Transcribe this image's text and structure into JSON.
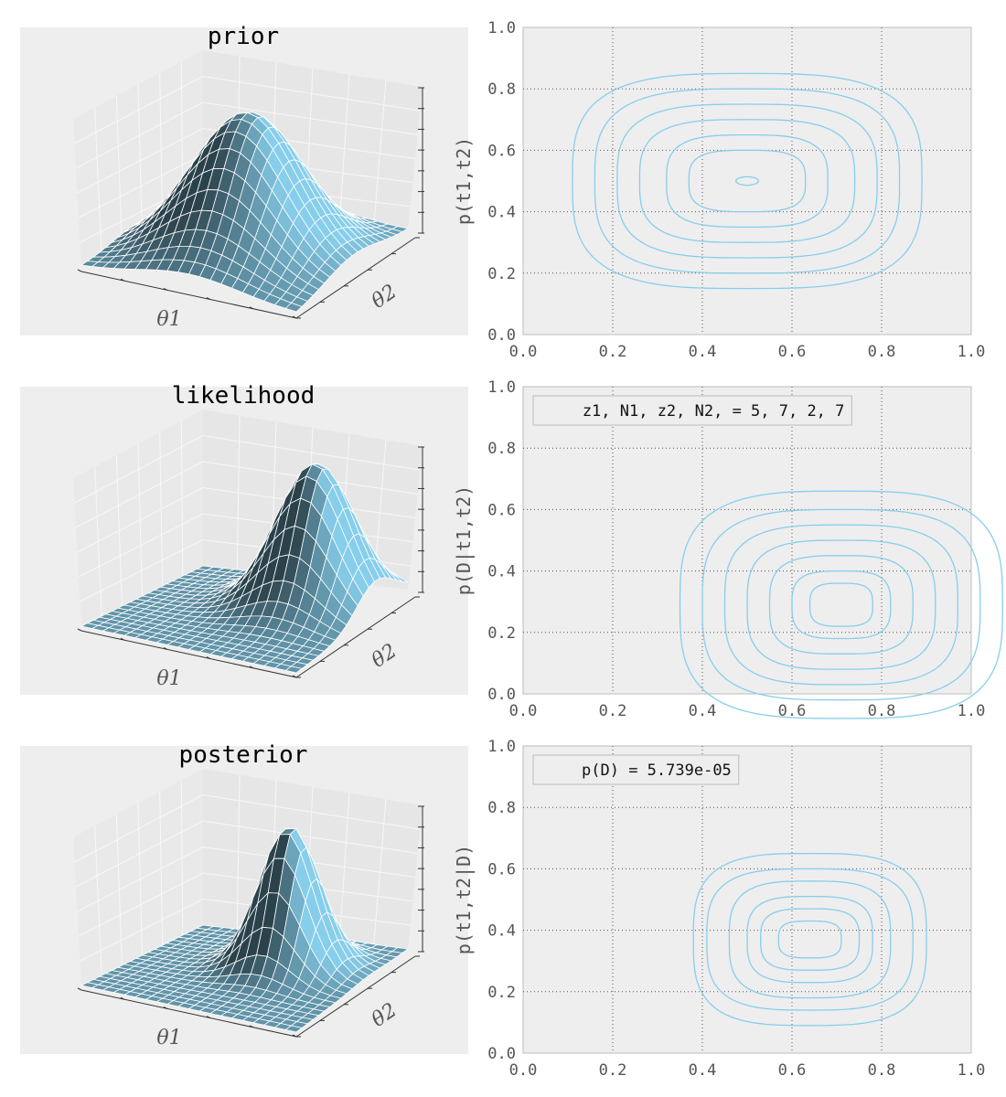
{
  "chart_data": [
    {
      "type": "surface3d",
      "title": "prior",
      "xlabel": "θ1",
      "ylabel": "θ2",
      "zlabel": "p(t1,t2)",
      "surface": {
        "center": [
          0.5,
          0.5
        ],
        "peak": 1.0,
        "width": 0.24,
        "grid": 20
      },
      "color": "#87CEEB"
    },
    {
      "type": "contour",
      "xlim": [
        0.0,
        1.0
      ],
      "ylim": [
        0.0,
        1.0
      ],
      "xticks": [
        "0.0",
        "0.2",
        "0.4",
        "0.6",
        "0.8",
        "1.0"
      ],
      "yticks": [
        "0.0",
        "0.2",
        "0.4",
        "0.6",
        "0.8",
        "1.0"
      ],
      "ylabel": "p(t1,t2)",
      "grid": true,
      "center": [
        0.5,
        0.5
      ],
      "levels": [
        {
          "rx": 0.39,
          "ry": 0.35
        },
        {
          "rx": 0.34,
          "ry": 0.3
        },
        {
          "rx": 0.29,
          "ry": 0.25
        },
        {
          "rx": 0.24,
          "ry": 0.2
        },
        {
          "rx": 0.18,
          "ry": 0.15
        },
        {
          "rx": 0.13,
          "ry": 0.1
        },
        {
          "rx": 0.025,
          "ry": 0.025
        }
      ],
      "legend": "",
      "color": "#87CEEB"
    },
    {
      "type": "surface3d",
      "title": "likelihood",
      "xlabel": "θ1",
      "ylabel": "θ2",
      "zlabel": "p(D|t1,t2)",
      "surface": {
        "center": [
          0.71,
          0.29
        ],
        "peak": 1.0,
        "width": 0.17,
        "grid": 20
      },
      "color": "#87CEEB"
    },
    {
      "type": "contour",
      "xlim": [
        0.0,
        1.0
      ],
      "ylim": [
        0.0,
        1.0
      ],
      "xticks": [
        "0.0",
        "0.2",
        "0.4",
        "0.6",
        "0.8",
        "1.0"
      ],
      "yticks": [
        "0.0",
        "0.2",
        "0.4",
        "0.6",
        "0.8",
        "1.0"
      ],
      "ylabel": "p(D|t1,t2)",
      "grid": true,
      "center": [
        0.71,
        0.29
      ],
      "levels": [
        {
          "rx": 0.36,
          "ry": 0.37
        },
        {
          "rx": 0.31,
          "ry": 0.31
        },
        {
          "rx": 0.26,
          "ry": 0.26
        },
        {
          "rx": 0.21,
          "ry": 0.21
        },
        {
          "rx": 0.16,
          "ry": 0.16
        },
        {
          "rx": 0.11,
          "ry": 0.11
        },
        {
          "rx": 0.07,
          "ry": 0.07
        }
      ],
      "legend": "z1, N1, z2, N2, = 5, 7, 2, 7",
      "color": "#87CEEB"
    },
    {
      "type": "surface3d",
      "title": "posterior",
      "xlabel": "θ1",
      "ylabel": "θ2",
      "zlabel": "p(t1,t2|D)",
      "surface": {
        "center": [
          0.63,
          0.37
        ],
        "peak": 1.0,
        "width": 0.13,
        "grid": 20
      },
      "color": "#87CEEB"
    },
    {
      "type": "contour",
      "xlim": [
        0.0,
        1.0
      ],
      "ylim": [
        0.0,
        1.0
      ],
      "xticks": [
        "0.0",
        "0.2",
        "0.4",
        "0.6",
        "0.8",
        "1.0"
      ],
      "yticks": [
        "0.0",
        "0.2",
        "0.4",
        "0.6",
        "0.8",
        "1.0"
      ],
      "ylabel": "p(t1,t2|D)",
      "grid": true,
      "center": [
        0.64,
        0.37
      ],
      "levels": [
        {
          "rx": 0.26,
          "ry": 0.28
        },
        {
          "rx": 0.23,
          "ry": 0.23
        },
        {
          "rx": 0.18,
          "ry": 0.19
        },
        {
          "rx": 0.14,
          "ry": 0.14
        },
        {
          "rx": 0.11,
          "ry": 0.1
        },
        {
          "rx": 0.07,
          "ry": 0.06
        }
      ],
      "legend": "p(D) = 5.739e-05",
      "color": "#87CEEB"
    }
  ]
}
